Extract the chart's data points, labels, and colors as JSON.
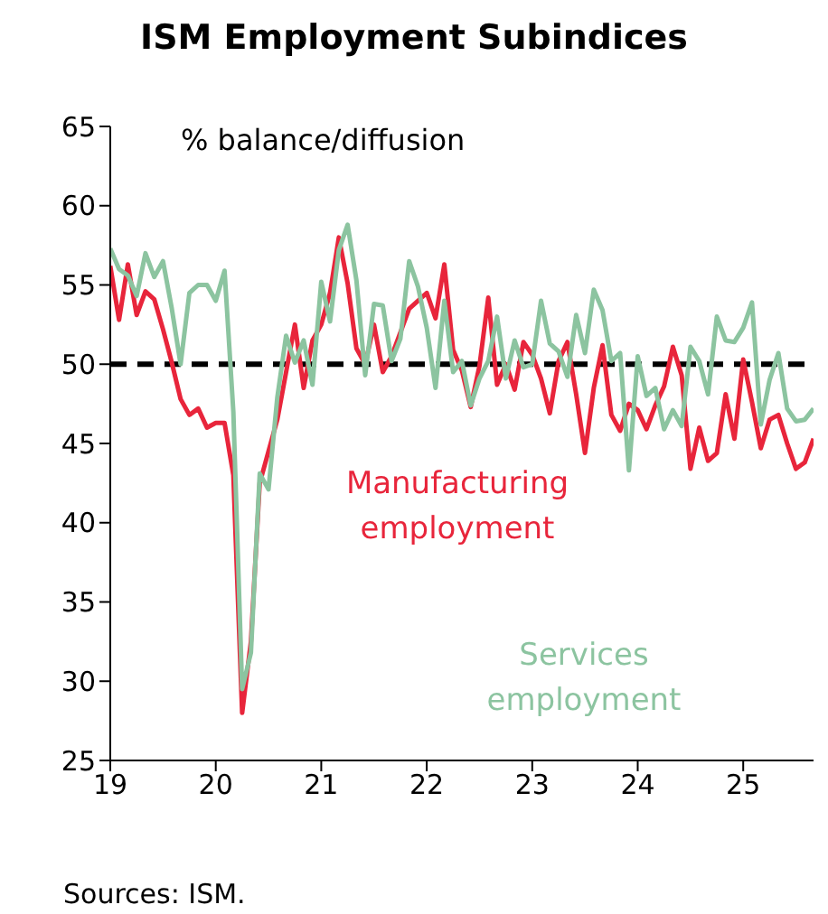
{
  "chart_data": {
    "type": "line",
    "title": "ISM Employment Subindices",
    "ylabel": "% balance/diffusion",
    "annotations": [
      "Sources: ISM."
    ],
    "x": [
      "2019-01",
      "2019-02",
      "2019-03",
      "2019-04",
      "2019-05",
      "2019-06",
      "2019-07",
      "2019-08",
      "2019-09",
      "2019-10",
      "2019-11",
      "2019-12",
      "2020-01",
      "2020-02",
      "2020-03",
      "2020-04",
      "2020-05",
      "2020-06",
      "2020-07",
      "2020-08",
      "2020-09",
      "2020-10",
      "2020-11",
      "2020-12",
      "2021-01",
      "2021-02",
      "2021-03",
      "2021-04",
      "2021-05",
      "2021-06",
      "2021-07",
      "2021-08",
      "2021-09",
      "2021-10",
      "2021-11",
      "2021-12",
      "2022-01",
      "2022-02",
      "2022-03",
      "2022-04",
      "2022-05",
      "2022-06",
      "2022-07",
      "2022-08",
      "2022-09",
      "2022-10",
      "2022-11",
      "2022-12",
      "2023-01",
      "2023-02",
      "2023-03",
      "2023-04",
      "2023-05",
      "2023-06",
      "2023-07",
      "2023-08",
      "2023-09",
      "2023-10",
      "2023-11",
      "2023-12",
      "2024-01",
      "2024-02",
      "2024-03",
      "2024-04",
      "2024-05",
      "2024-06",
      "2024-07",
      "2024-08",
      "2024-09",
      "2024-10",
      "2024-11",
      "2024-12",
      "2025-01",
      "2025-02",
      "2025-03",
      "2025-04",
      "2025-05",
      "2025-06",
      "2025-07",
      "2025-08",
      "2025-09"
    ],
    "series": [
      {
        "name": "Manufacturing employment",
        "color": "#e8253b",
        "values": [
          56.2,
          52.8,
          56.3,
          53.1,
          54.6,
          54.1,
          52.2,
          50.1,
          47.8,
          46.8,
          47.2,
          46.0,
          46.3,
          46.3,
          43.0,
          28.0,
          32.5,
          42.5,
          44.5,
          46.5,
          49.5,
          52.5,
          48.5,
          51.5,
          52.5,
          54.5,
          58.0,
          55.1,
          51.0,
          50.0,
          52.5,
          49.5,
          50.5,
          52.0,
          53.5,
          54.0,
          54.5,
          52.9,
          56.3,
          50.9,
          49.6,
          47.3,
          49.9,
          54.2,
          48.7,
          50.0,
          48.4,
          51.4,
          50.6,
          49.1,
          46.9,
          50.2,
          51.4,
          48.1,
          44.4,
          48.5,
          51.2,
          46.8,
          45.8,
          47.5,
          47.1,
          45.9,
          47.4,
          48.6,
          51.1,
          49.3,
          43.4,
          46.0,
          43.9,
          44.4,
          48.1,
          45.3,
          50.3,
          47.6,
          44.7,
          46.5,
          46.8,
          45.0,
          43.4,
          43.8,
          45.3
        ]
      },
      {
        "name": "Services employment",
        "color": "#8cc4a0",
        "values": [
          57.3,
          56.0,
          55.6,
          54.3,
          57.0,
          55.5,
          56.5,
          53.5,
          50.0,
          54.5,
          55.0,
          55.0,
          54.0,
          55.9,
          47.0,
          29.5,
          31.8,
          43.1,
          42.1,
          47.9,
          51.8,
          50.1,
          51.5,
          48.7,
          55.2,
          52.7,
          57.2,
          58.8,
          55.3,
          49.3,
          53.8,
          53.7,
          50.2,
          51.6,
          56.5,
          54.9,
          52.3,
          48.5,
          54.0,
          49.5,
          50.2,
          47.4,
          49.1,
          50.2,
          53.0,
          49.1,
          51.5,
          49.8,
          50.0,
          54.0,
          51.3,
          50.8,
          49.2,
          53.1,
          50.7,
          54.7,
          53.4,
          50.2,
          50.7,
          43.3,
          50.5,
          48.0,
          48.5,
          45.9,
          47.1,
          46.1,
          51.1,
          50.2,
          48.1,
          53.0,
          51.5,
          51.4,
          52.3,
          53.9,
          46.2,
          49.0,
          50.7,
          47.2,
          46.4,
          46.5,
          47.2
        ]
      }
    ],
    "xlim": [
      "2019-01",
      "2025-09"
    ],
    "xticks": [
      {
        "value": "2019-01",
        "label": "19"
      },
      {
        "value": "2020-01",
        "label": "20"
      },
      {
        "value": "2021-01",
        "label": "21"
      },
      {
        "value": "2022-01",
        "label": "22"
      },
      {
        "value": "2023-01",
        "label": "23"
      },
      {
        "value": "2024-01",
        "label": "24"
      },
      {
        "value": "2025-01",
        "label": "25"
      }
    ],
    "ylim": [
      25,
      65
    ],
    "yticks": [
      25,
      30,
      35,
      40,
      45,
      50,
      55,
      60,
      65
    ],
    "ref_lines": [
      {
        "axis": "y",
        "value": 50,
        "color": "#000000",
        "line_style": "dashed"
      }
    ],
    "grid": false
  }
}
